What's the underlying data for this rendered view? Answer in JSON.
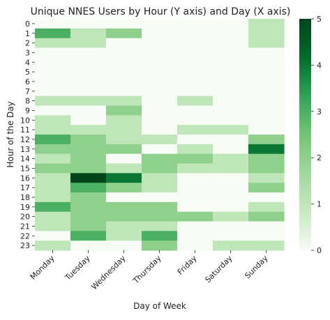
{
  "chart_data": {
    "type": "heatmap",
    "title": "Unique NNES Users by Hour (Y axis) and Day (X axis)",
    "xlabel": "Day of Week",
    "ylabel": "Hour of the Day",
    "x": [
      "Monday",
      "Tuesday",
      "Wednesday",
      "Thursday",
      "Friday",
      "Saturday",
      "Sunday"
    ],
    "y": [
      "0",
      "1",
      "2",
      "3",
      "4",
      "5",
      "6",
      "7",
      "8",
      "9",
      "10",
      "11",
      "12",
      "13",
      "14",
      "15",
      "16",
      "17",
      "18",
      "19",
      "20",
      "21",
      "22",
      "23"
    ],
    "values": [
      [
        0,
        0,
        0,
        0,
        0,
        0,
        1
      ],
      [
        3,
        1,
        2,
        0,
        0,
        0,
        1
      ],
      [
        1,
        1,
        0,
        0,
        0,
        0,
        1
      ],
      [
        0,
        0,
        0,
        0,
        0,
        0,
        0
      ],
      [
        0,
        0,
        0,
        0,
        0,
        0,
        0
      ],
      [
        0,
        0,
        0,
        0,
        0,
        0,
        0
      ],
      [
        0,
        0,
        0,
        0,
        0,
        0,
        0
      ],
      [
        0,
        0,
        0,
        0,
        0,
        0,
        0
      ],
      [
        1,
        1,
        1,
        0,
        1,
        0,
        0
      ],
      [
        0,
        0,
        2,
        0,
        0,
        0,
        0
      ],
      [
        1,
        0,
        1,
        0,
        0,
        0,
        0
      ],
      [
        1,
        1,
        1,
        0,
        1,
        1,
        0
      ],
      [
        3,
        2,
        1,
        1,
        0,
        0,
        2
      ],
      [
        2,
        2,
        2,
        0,
        1,
        0,
        4
      ],
      [
        1,
        2,
        0,
        2,
        2,
        1,
        2
      ],
      [
        2,
        2,
        1,
        2,
        1,
        1,
        2
      ],
      [
        1,
        5,
        4,
        1,
        0,
        0,
        1
      ],
      [
        1,
        3,
        2,
        1,
        0,
        0,
        2
      ],
      [
        1,
        2,
        0,
        0,
        0,
        0,
        0
      ],
      [
        3,
        2,
        2,
        2,
        0,
        0,
        1
      ],
      [
        1,
        2,
        2,
        2,
        2,
        1,
        2
      ],
      [
        1,
        2,
        1,
        1,
        0,
        0,
        0
      ],
      [
        0,
        3,
        1,
        3,
        0,
        0,
        0
      ],
      [
        1,
        0,
        0,
        2,
        0,
        1,
        1
      ]
    ],
    "vmin": 0,
    "vmax": 5,
    "colorbar_ticks": [
      0,
      1,
      2,
      3,
      4,
      5
    ],
    "colormap": [
      "#f7fcf5",
      "#c7e9c0",
      "#a1d99b",
      "#74c476",
      "#31a354",
      "#006d2c",
      "#00441b"
    ]
  }
}
